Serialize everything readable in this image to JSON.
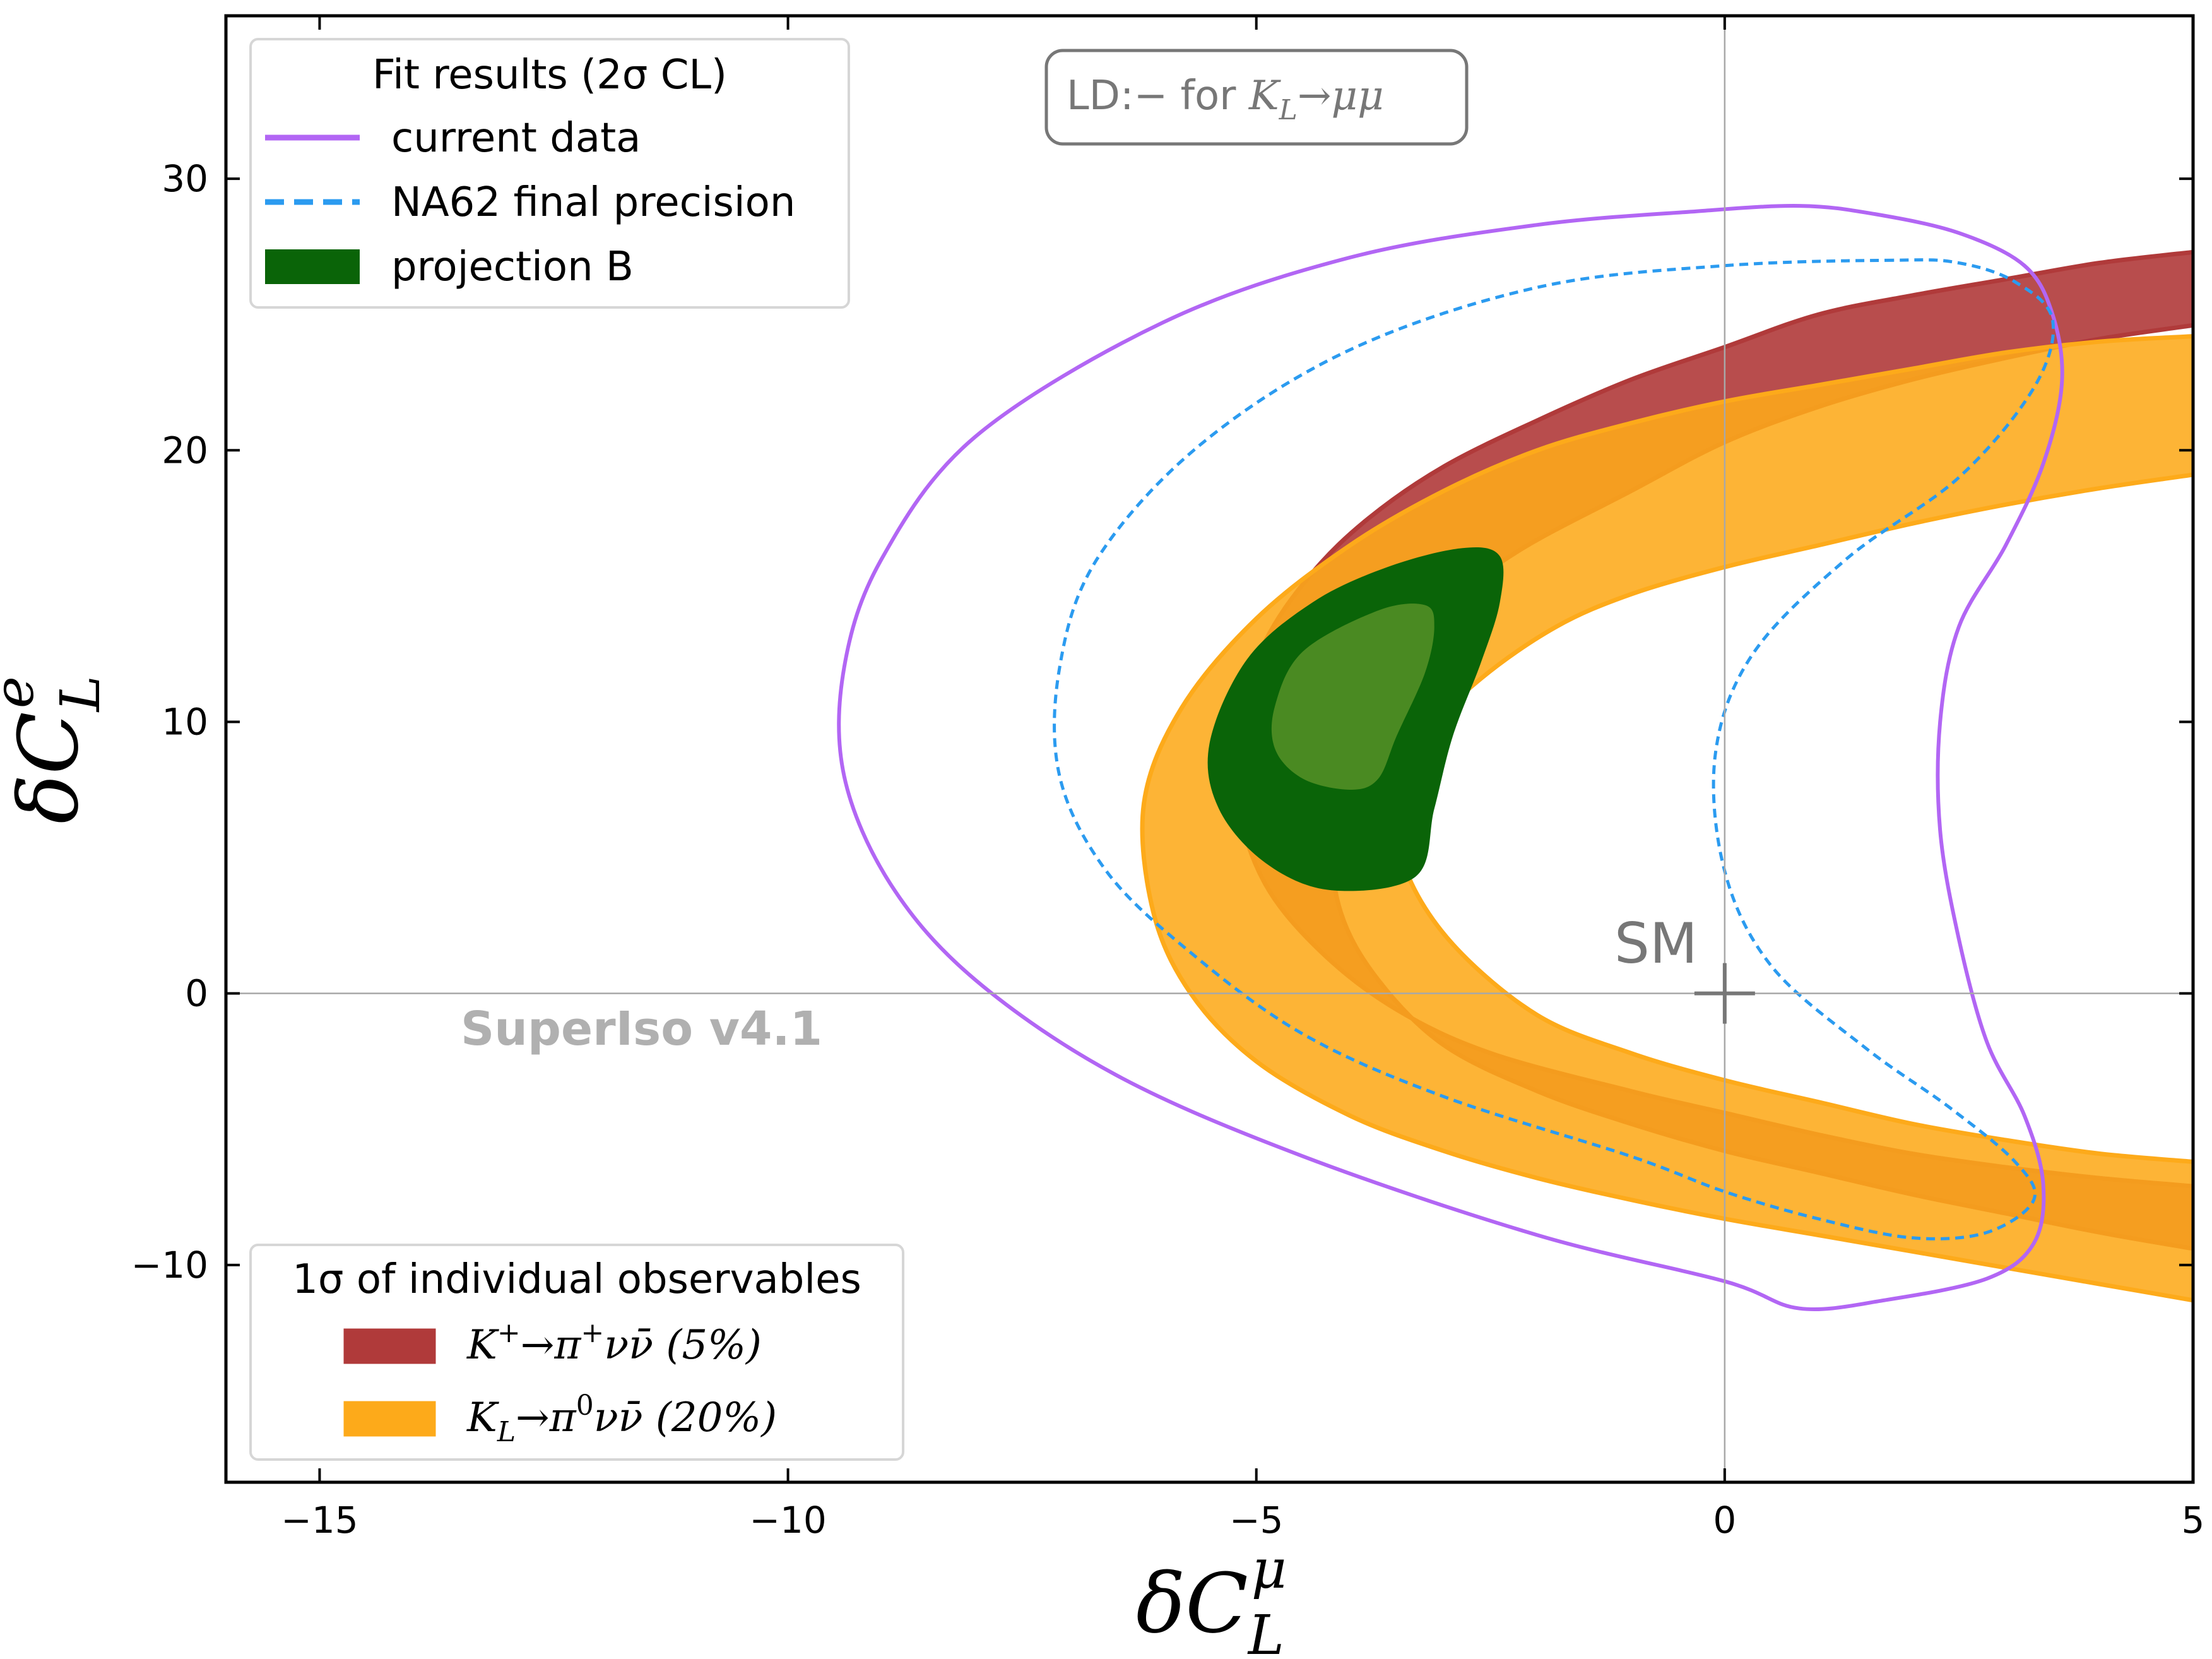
{
  "chart_data": {
    "type": "contour",
    "xlabel_base": "δC",
    "xlabel_sub": "L",
    "xlabel_sup": "μ",
    "ylabel_base": "δC",
    "ylabel_sub": "L",
    "ylabel_sup": "e",
    "xlim": [
      -16,
      5
    ],
    "ylim": [
      -18,
      36
    ],
    "xticks": [
      -15,
      -10,
      -5,
      0,
      5
    ],
    "xtick_labels": [
      "−15",
      "−10",
      "−5",
      "0",
      "5"
    ],
    "yticks": [
      -10,
      0,
      10,
      20,
      30
    ],
    "ytick_labels": [
      "−10",
      "0",
      "10",
      "20",
      "30"
    ],
    "reference_lines": {
      "x": 0,
      "y": 0
    },
    "sm_point": {
      "x": 0,
      "y": 0,
      "label": "SM"
    },
    "watermark": "SuperIso v4.1",
    "annotation": {
      "prefix": "LD:− for ",
      "observable_base": "K",
      "observable_sub": "L",
      "observable_rest": "→μμ"
    },
    "legend_fit": {
      "title": "Fit results (2σ CL)",
      "entries": [
        {
          "label": "current data",
          "style": "solid-line",
          "color": "#b266f4"
        },
        {
          "label": "NA62 final precision",
          "style": "dashed-line",
          "color": "#2b9bf0"
        },
        {
          "label": "projection B",
          "style": "patch",
          "color": "#0a6408"
        }
      ]
    },
    "legend_obs": {
      "title": "1σ of individual observables",
      "entries": [
        {
          "label_base": "K",
          "label_sup": "+",
          "label_rest": "→π",
          "label_sup2": "+",
          "label_tail": "νν̄ (5%)",
          "color": "#b03a3a"
        },
        {
          "label_base": "K",
          "label_sub": "L",
          "label_rest": "→π",
          "label_sup2": "0",
          "label_tail": "νν̄  (20%)",
          "color": "#fdaa1a"
        }
      ]
    },
    "series": [
      {
        "name": "K+→π+νν̄ (5%) band",
        "type": "band",
        "fill": "#b03a3a",
        "fill_opacity": 0.9,
        "outer": [
          [
            5,
            27.3
          ],
          [
            4,
            26.9
          ],
          [
            3,
            26.3
          ],
          [
            2,
            25.7
          ],
          [
            1,
            25.0
          ],
          [
            0,
            23.8
          ],
          [
            -1,
            22.6
          ],
          [
            -2,
            21.1
          ],
          [
            -3,
            19.4
          ],
          [
            -3.8,
            17.5
          ],
          [
            -4.4,
            15.5
          ],
          [
            -4.9,
            13.0
          ],
          [
            -5.2,
            10.0
          ],
          [
            -5.2,
            7.0
          ],
          [
            -4.9,
            4.0
          ],
          [
            -4.3,
            1.5
          ],
          [
            -3.5,
            -0.6
          ],
          [
            -2.5,
            -2.2
          ],
          [
            -1.0,
            -3.6
          ],
          [
            0,
            -4.4
          ],
          [
            1,
            -5.2
          ],
          [
            2,
            -5.9
          ],
          [
            3,
            -6.4
          ],
          [
            4,
            -6.8
          ],
          [
            5,
            -7.1
          ]
        ],
        "inner": [
          [
            5,
            -9.4
          ],
          [
            4,
            -8.8
          ],
          [
            3,
            -8.1
          ],
          [
            2,
            -7.4
          ],
          [
            1,
            -6.6
          ],
          [
            0,
            -5.8
          ],
          [
            -1,
            -4.8
          ],
          [
            -2,
            -3.6
          ],
          [
            -3,
            -1.9
          ],
          [
            -3.7,
            0.5
          ],
          [
            -4.1,
            3.0
          ],
          [
            -4.2,
            6.0
          ],
          [
            -4.0,
            9.0
          ],
          [
            -3.6,
            11.8
          ],
          [
            -3.0,
            14.2
          ],
          [
            -2.2,
            16.3
          ],
          [
            -1.0,
            18.5
          ],
          [
            0,
            20.3
          ],
          [
            1,
            21.6
          ],
          [
            2,
            22.6
          ],
          [
            3,
            23.4
          ],
          [
            4,
            24.1
          ],
          [
            5,
            24.6
          ]
        ]
      },
      {
        "name": "KL→π0νν̄ (20%) band",
        "type": "band",
        "fill": "#fdaa1a",
        "fill_opacity": 0.88,
        "outer": [
          [
            5,
            24.2
          ],
          [
            4,
            24.0
          ],
          [
            3,
            23.6
          ],
          [
            2,
            23.0
          ],
          [
            1,
            22.4
          ],
          [
            0,
            21.8
          ],
          [
            -1,
            21.0
          ],
          [
            -2,
            20.0
          ],
          [
            -3,
            18.5
          ],
          [
            -4,
            16.5
          ],
          [
            -5,
            13.8
          ],
          [
            -5.8,
            10.5
          ],
          [
            -6.2,
            7.0
          ],
          [
            -6.1,
            3.0
          ],
          [
            -5.7,
            0.0
          ],
          [
            -5.0,
            -2.5
          ],
          [
            -4.0,
            -4.5
          ],
          [
            -3.0,
            -5.8
          ],
          [
            -2.0,
            -6.8
          ],
          [
            -1.0,
            -7.6
          ],
          [
            0,
            -8.3
          ],
          [
            1,
            -8.9
          ],
          [
            2,
            -9.5
          ],
          [
            3,
            -10.1
          ],
          [
            4,
            -10.7
          ],
          [
            5,
            -11.3
          ]
        ],
        "inner": [
          [
            5,
            -6.2
          ],
          [
            4,
            -5.9
          ],
          [
            3,
            -5.4
          ],
          [
            2,
            -4.8
          ],
          [
            1,
            -4.0
          ],
          [
            0,
            -3.2
          ],
          [
            -1,
            -2.2
          ],
          [
            -2,
            -0.8
          ],
          [
            -2.9,
            1.8
          ],
          [
            -3.4,
            4.5
          ],
          [
            -3.5,
            7.0
          ],
          [
            -3.2,
            9.5
          ],
          [
            -2.6,
            11.6
          ],
          [
            -1.8,
            13.5
          ],
          [
            -1.0,
            14.7
          ],
          [
            0,
            15.7
          ],
          [
            1,
            16.5
          ],
          [
            2,
            17.3
          ],
          [
            3,
            18.0
          ],
          [
            4,
            18.6
          ],
          [
            5,
            19.1
          ]
        ]
      },
      {
        "name": "projection B (2σ)",
        "type": "region",
        "fill": "#0a6408",
        "points": [
          [
            -2.4,
            16.1
          ],
          [
            -2.8,
            16.4
          ],
          [
            -3.6,
            15.7
          ],
          [
            -4.4,
            14.4
          ],
          [
            -5.1,
            12.3
          ],
          [
            -5.5,
            9.2
          ],
          [
            -5.4,
            6.8
          ],
          [
            -4.9,
            4.8
          ],
          [
            -4.2,
            3.8
          ],
          [
            -3.3,
            4.3
          ],
          [
            -3.1,
            6.8
          ],
          [
            -2.9,
            9.5
          ],
          [
            -2.6,
            12.2
          ],
          [
            -2.4,
            14.4
          ]
        ]
      },
      {
        "name": "projection B (1σ)",
        "type": "region",
        "fill": "#4a8a22",
        "points": [
          [
            -3.2,
            14.3
          ],
          [
            -3.7,
            14.1
          ],
          [
            -4.5,
            12.6
          ],
          [
            -4.8,
            10.6
          ],
          [
            -4.8,
            9.0
          ],
          [
            -4.5,
            7.9
          ],
          [
            -4.0,
            7.5
          ],
          [
            -3.7,
            7.9
          ],
          [
            -3.5,
            9.5
          ],
          [
            -3.2,
            11.8
          ],
          [
            -3.1,
            13.5
          ]
        ]
      },
      {
        "name": "current data (2σ)",
        "type": "contour",
        "color": "#b266f4",
        "points": [
          [
            0.8,
            29.0
          ],
          [
            -0.3,
            28.8
          ],
          [
            -2.0,
            28.3
          ],
          [
            -4.0,
            27.1
          ],
          [
            -6.0,
            24.7
          ],
          [
            -8.0,
            20.5
          ],
          [
            -9.0,
            16.0
          ],
          [
            -9.4,
            12.0
          ],
          [
            -9.4,
            8.0
          ],
          [
            -8.9,
            4.0
          ],
          [
            -8.0,
            0.5
          ],
          [
            -6.5,
            -3.0
          ],
          [
            -4.5,
            -6.0
          ],
          [
            -2.0,
            -8.9
          ],
          [
            0,
            -10.6
          ],
          [
            0.8,
            -11.6
          ],
          [
            1.7,
            -11.3
          ],
          [
            2.8,
            -10.5
          ],
          [
            3.3,
            -9.2
          ],
          [
            3.4,
            -7.0
          ],
          [
            3.2,
            -4.5
          ],
          [
            2.8,
            -1.8
          ],
          [
            2.5,
            2.0
          ],
          [
            2.3,
            6.0
          ],
          [
            2.3,
            10.0
          ],
          [
            2.5,
            13.5
          ],
          [
            3.0,
            16.5
          ],
          [
            3.4,
            19.5
          ],
          [
            3.6,
            22.5
          ],
          [
            3.5,
            25.0
          ],
          [
            3.2,
            26.8
          ],
          [
            2.5,
            28.0
          ],
          [
            1.6,
            28.7
          ]
        ]
      },
      {
        "name": "NA62 final precision (2σ)",
        "type": "contour",
        "color": "#2b9bf0",
        "points": [
          [
            1.8,
            27.0
          ],
          [
            0,
            26.8
          ],
          [
            -2.0,
            26.0
          ],
          [
            -4.0,
            23.7
          ],
          [
            -5.6,
            20.2
          ],
          [
            -6.7,
            16.0
          ],
          [
            -7.1,
            12.0
          ],
          [
            -7.1,
            8.0
          ],
          [
            -6.6,
            4.5
          ],
          [
            -5.7,
            1.5
          ],
          [
            -4.5,
            -1.5
          ],
          [
            -3.0,
            -3.8
          ],
          [
            -1.0,
            -6.0
          ],
          [
            0,
            -7.3
          ],
          [
            1.0,
            -8.3
          ],
          [
            2.0,
            -9.0
          ],
          [
            2.8,
            -8.8
          ],
          [
            3.3,
            -7.6
          ],
          [
            3.1,
            -6.2
          ],
          [
            2.4,
            -4.2
          ],
          [
            1.5,
            -2.0
          ],
          [
            0.5,
            1.0
          ],
          [
            0,
            4.5
          ],
          [
            -0.1,
            8.8
          ],
          [
            0.3,
            12.5
          ],
          [
            1.3,
            16.0
          ],
          [
            2.5,
            19.0
          ],
          [
            3.3,
            22.3
          ],
          [
            3.5,
            24.8
          ],
          [
            3.1,
            26.2
          ],
          [
            2.5,
            26.9
          ]
        ]
      }
    ]
  }
}
